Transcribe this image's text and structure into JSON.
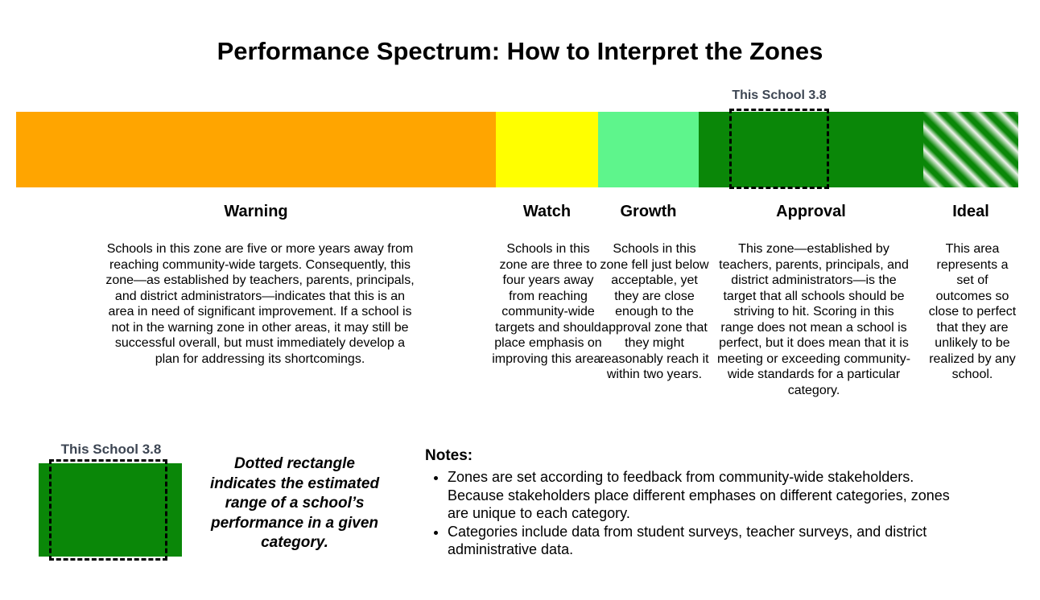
{
  "title": "Performance Spectrum: How to Interpret the Zones",
  "bar": {
    "marker": {
      "label": "This School 3.8",
      "score": "3.8"
    },
    "zones": [
      {
        "name": "Warning",
        "color": "#FFA500",
        "description": "Schools in this zone are five or more years away from reaching community-wide targets. Consequently, this zone—as established by teachers, parents, principals, and district administrators—indicates that this is an area in need of significant improvement. If a school is not in the warning zone in other areas, it may still be successful overall, but must immediately develop a plan for addressing its shortcomings."
      },
      {
        "name": "Watch",
        "color": "#FFFF00",
        "description": "Schools in this zone are three to four years away from reaching community-wide targets and should place emphasis on improving this area."
      },
      {
        "name": "Growth",
        "color": "#5EF58C",
        "description": "Schools in this zone fell just below acceptable, yet they are close enough to the approval zone that they might reasonably reach it within two years."
      },
      {
        "name": "Approval",
        "color": "#0A8708",
        "description": "This zone—established by teachers, parents, principals, and district administrators—is the target that all schools should be striving to hit. Scoring in this range does not mean a school is perfect, but it does mean that it is meeting or exceeding community-wide standards for a particular category."
      },
      {
        "name": "Ideal",
        "color": "#0A8708",
        "pattern": "diagonal-stripes",
        "pattern_bg": "#EFF3EC",
        "description": "This area represents a set of outcomes so close to perfect that they are unlikely to be realized by any school."
      }
    ]
  },
  "legend": {
    "marker_label": "This School 3.8",
    "swatch_color": "#0A8708",
    "caption": "Dotted rectangle indicates the estimated range of a school’s performance in a given category."
  },
  "notes": {
    "heading": "Notes:",
    "items": [
      "Zones are set according to feedback from community-wide stakeholders. Because stakeholders place different emphases on different categories, zones are unique to each category.",
      "Categories include data from student surveys, teacher surveys, and district administrative data."
    ]
  }
}
